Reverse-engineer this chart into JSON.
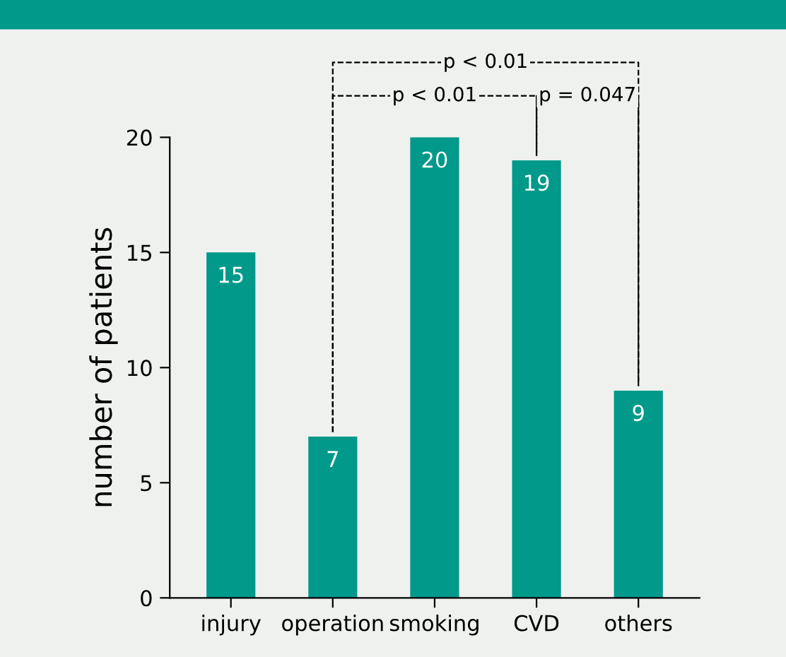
{
  "chart_data": {
    "type": "bar",
    "ylabel": "number of patients",
    "categories": [
      "injury",
      "operation",
      "smoking",
      "CVD",
      "others"
    ],
    "values": [
      15,
      7,
      20,
      19,
      9
    ],
    "color": "#00998a",
    "ylim": [
      0,
      20
    ],
    "yticks": [
      0,
      5,
      10,
      15,
      20
    ],
    "data_labels": true,
    "annotations": [
      "p < 0.01",
      "p < 0.01",
      "p = 0.047"
    ]
  }
}
